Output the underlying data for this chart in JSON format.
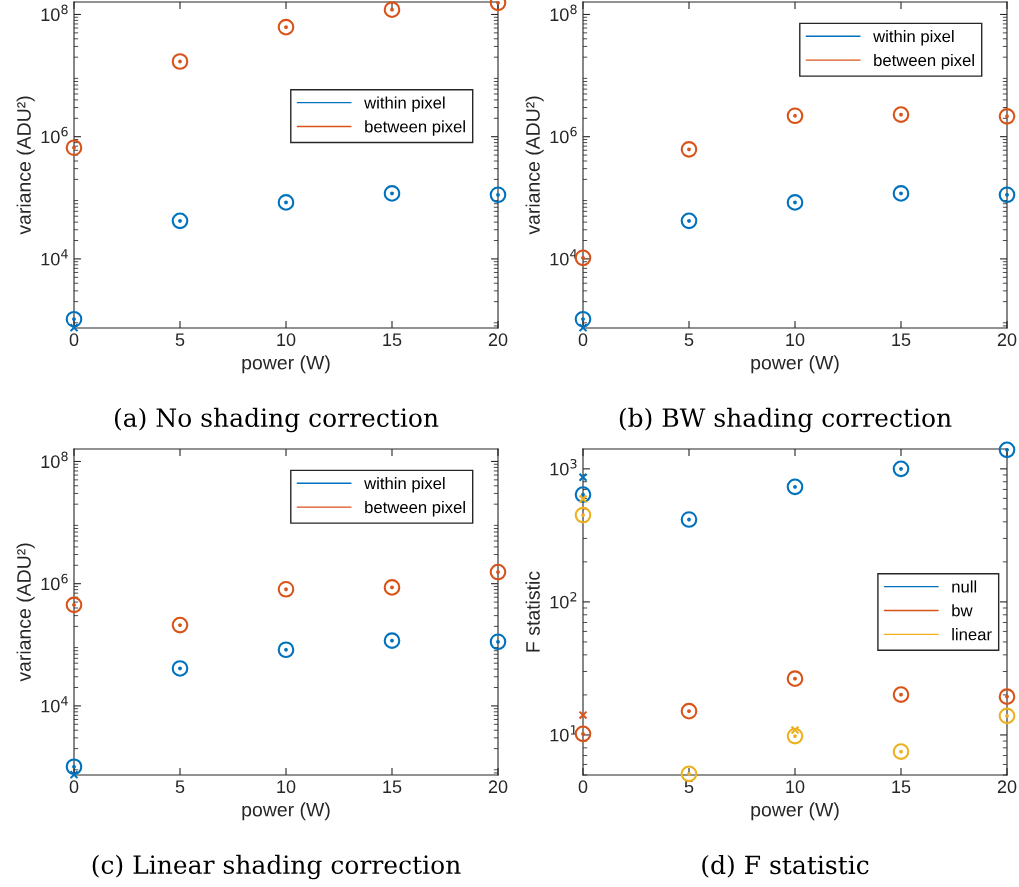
{
  "chart_data": [
    {
      "type": "scatter",
      "xlabel": "power (W)",
      "ylabel": "variance (ADU²)",
      "annotations": [
        "(a) No shading correction"
      ],
      "log": "y",
      "marker": "circle",
      "legend": "right",
      "grid": false,
      "xlim": [
        0,
        20
      ],
      "xticks": [
        0,
        5,
        10,
        15,
        20
      ],
      "ylim": [
        740,
        160000000
      ],
      "yticks": [
        {
          "value": 10000,
          "label": "10$^{4}$"
        },
        {
          "value": 1000000,
          "label": "10$^{6}$"
        },
        {
          "value": 100000000,
          "label": "10$^{8}$"
        }
      ],
      "series": [
        {
          "name": "within pixel",
          "color": "#0072bd",
          "x": [
            0,
            5,
            10,
            15,
            20
          ],
          "values": [
            1030,
            42000,
            84000,
            118000,
            112000
          ]
        },
        {
          "name": "between pixel",
          "color": "#d95319",
          "x": [
            0,
            5,
            10,
            15,
            20
          ],
          "values": [
            660000,
            17000000,
            62000000,
            120000000,
            155000000
          ]
        },
        {
          "color": "#0072bd",
          "marker": "cross",
          "x": [
            0
          ],
          "values": [
            750
          ]
        }
      ]
    },
    {
      "type": "scatter",
      "xlabel": "power (W)",
      "ylabel": "variance (ADU²)",
      "annotations": [
        "(b) BW shading correction"
      ],
      "log": "y",
      "marker": "circle",
      "legend": "top right",
      "grid": false,
      "xlim": [
        0,
        20
      ],
      "xticks": [
        0,
        5,
        10,
        15,
        20
      ],
      "ylim": [
        740,
        160000000
      ],
      "yticks": [
        {
          "value": 10000,
          "label": "10$^{4}$"
        },
        {
          "value": 1000000,
          "label": "10$^{6}$"
        },
        {
          "value": 100000000,
          "label": "10$^{8}$"
        }
      ],
      "series": [
        {
          "name": "within pixel",
          "color": "#0072bd",
          "x": [
            0,
            5,
            10,
            15,
            20
          ],
          "values": [
            1030,
            42000,
            84000,
            118000,
            112000
          ]
        },
        {
          "name": "between pixel",
          "color": "#d95319",
          "x": [
            0,
            5,
            10,
            15,
            20
          ],
          "values": [
            10400,
            620000,
            2200000,
            2300000,
            2150000
          ]
        },
        {
          "color": "#0072bd",
          "marker": "cross",
          "x": [
            0
          ],
          "values": [
            750
          ]
        }
      ]
    },
    {
      "type": "scatter",
      "xlabel": "power (W)",
      "ylabel": "variance (ADU²)",
      "annotations": [
        "(c) Linear shading correction"
      ],
      "log": "y",
      "marker": "circle",
      "legend": "top right",
      "grid": false,
      "xlim": [
        0,
        20
      ],
      "xticks": [
        0,
        5,
        10,
        15,
        20
      ],
      "ylim": [
        740,
        160000000
      ],
      "yticks": [
        {
          "value": 10000,
          "label": "10$^{4}$"
        },
        {
          "value": 1000000,
          "label": "10$^{6}$"
        },
        {
          "value": 100000000,
          "label": "10$^{8}$"
        }
      ],
      "series": [
        {
          "name": "within pixel",
          "color": "#0072bd",
          "x": [
            0,
            5,
            10,
            15,
            20
          ],
          "values": [
            1010,
            41000,
            83000,
            117000,
            112000
          ]
        },
        {
          "name": "between pixel",
          "color": "#d95319",
          "x": [
            0,
            5,
            10,
            15,
            20
          ],
          "values": [
            450000,
            210000,
            810000,
            870000,
            1550000
          ]
        },
        {
          "color": "#0072bd",
          "marker": "cross",
          "x": [
            0
          ],
          "values": [
            750
          ]
        }
      ]
    },
    {
      "type": "scatter",
      "xlabel": "power (W)",
      "ylabel": "F statistic",
      "annotations": [
        "(d) F statistic"
      ],
      "log": "y",
      "marker": "circle",
      "legend": "right",
      "grid": false,
      "xlim": [
        0,
        20
      ],
      "xticks": [
        0,
        5,
        10,
        15,
        20
      ],
      "ylim": [
        5,
        1410
      ],
      "yticks": [
        {
          "value": 10,
          "label": "10$^{1}$"
        },
        {
          "value": 100,
          "label": "10$^{2}$"
        },
        {
          "value": 1000,
          "label": "10$^{3}$"
        }
      ],
      "series": [
        {
          "name": "null",
          "color": "#0072bd",
          "x": [
            0,
            5,
            10,
            15,
            20
          ],
          "values": [
            641,
            416,
            733,
            1000,
            1390
          ]
        },
        {
          "name": "bw",
          "color": "#d95319",
          "x": [
            0,
            5,
            10,
            15,
            20
          ],
          "values": [
            10.2,
            15.1,
            26.5,
            20.1,
            19.4
          ]
        },
        {
          "name": "linear",
          "color": "#edb120",
          "x": [
            0,
            5,
            10,
            15,
            20
          ],
          "values": [
            449,
            5.1,
            9.8,
            7.5,
            13.9
          ]
        },
        {
          "color": "#0072bd",
          "marker": "cross",
          "x": [
            0
          ],
          "values": [
            866
          ]
        },
        {
          "color": "#d95319",
          "marker": "cross",
          "x": [
            0
          ],
          "values": [
            14.1
          ]
        },
        {
          "color": "#edb120",
          "marker": "cross",
          "x": [
            0,
            10
          ],
          "values": [
            594,
            10.9
          ]
        }
      ]
    }
  ]
}
